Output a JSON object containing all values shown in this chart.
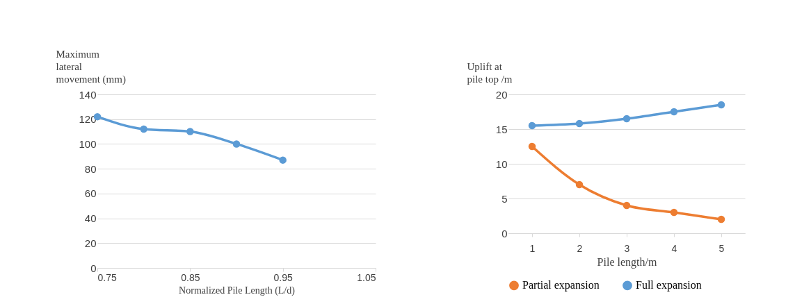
{
  "chart_data": [
    {
      "type": "line",
      "xlabel": "Normalized Pile Length (L/d)",
      "ylabel": "Maximum lateral movement (mm)",
      "x": [
        0.75,
        0.8,
        0.85,
        0.9,
        0.95
      ],
      "series": [
        {
          "color": "#5b9bd5",
          "values": [
            122,
            112,
            110,
            100,
            87
          ]
        }
      ],
      "xlim": [
        0.75,
        1.05
      ],
      "xticks": [
        0.75,
        0.85,
        0.95,
        1.05
      ],
      "ylim": [
        0,
        140
      ],
      "yticks": [
        0,
        20,
        40,
        60,
        80,
        100,
        120,
        140
      ],
      "grid": "y",
      "marker": "circle",
      "line_style": "solid",
      "legend": false
    },
    {
      "type": "line",
      "xlabel": "Pile length/m",
      "ylabel": "Uplift at pile top /m",
      "categories": [
        "1",
        "2",
        "3",
        "4",
        "5"
      ],
      "series": [
        {
          "name": "Partial expansion",
          "color": "#ed7d31",
          "values": [
            12.5,
            7,
            4,
            3,
            2
          ]
        },
        {
          "name": "Full expansion",
          "color": "#5b9bd5",
          "values": [
            15.5,
            15.8,
            16.5,
            17.5,
            18.5
          ]
        }
      ],
      "ylim": [
        0,
        20
      ],
      "yticks": [
        0,
        5,
        10,
        15,
        20
      ],
      "grid": "y",
      "marker": "circle",
      "line_style": "solid",
      "legend": "bottom"
    }
  ]
}
